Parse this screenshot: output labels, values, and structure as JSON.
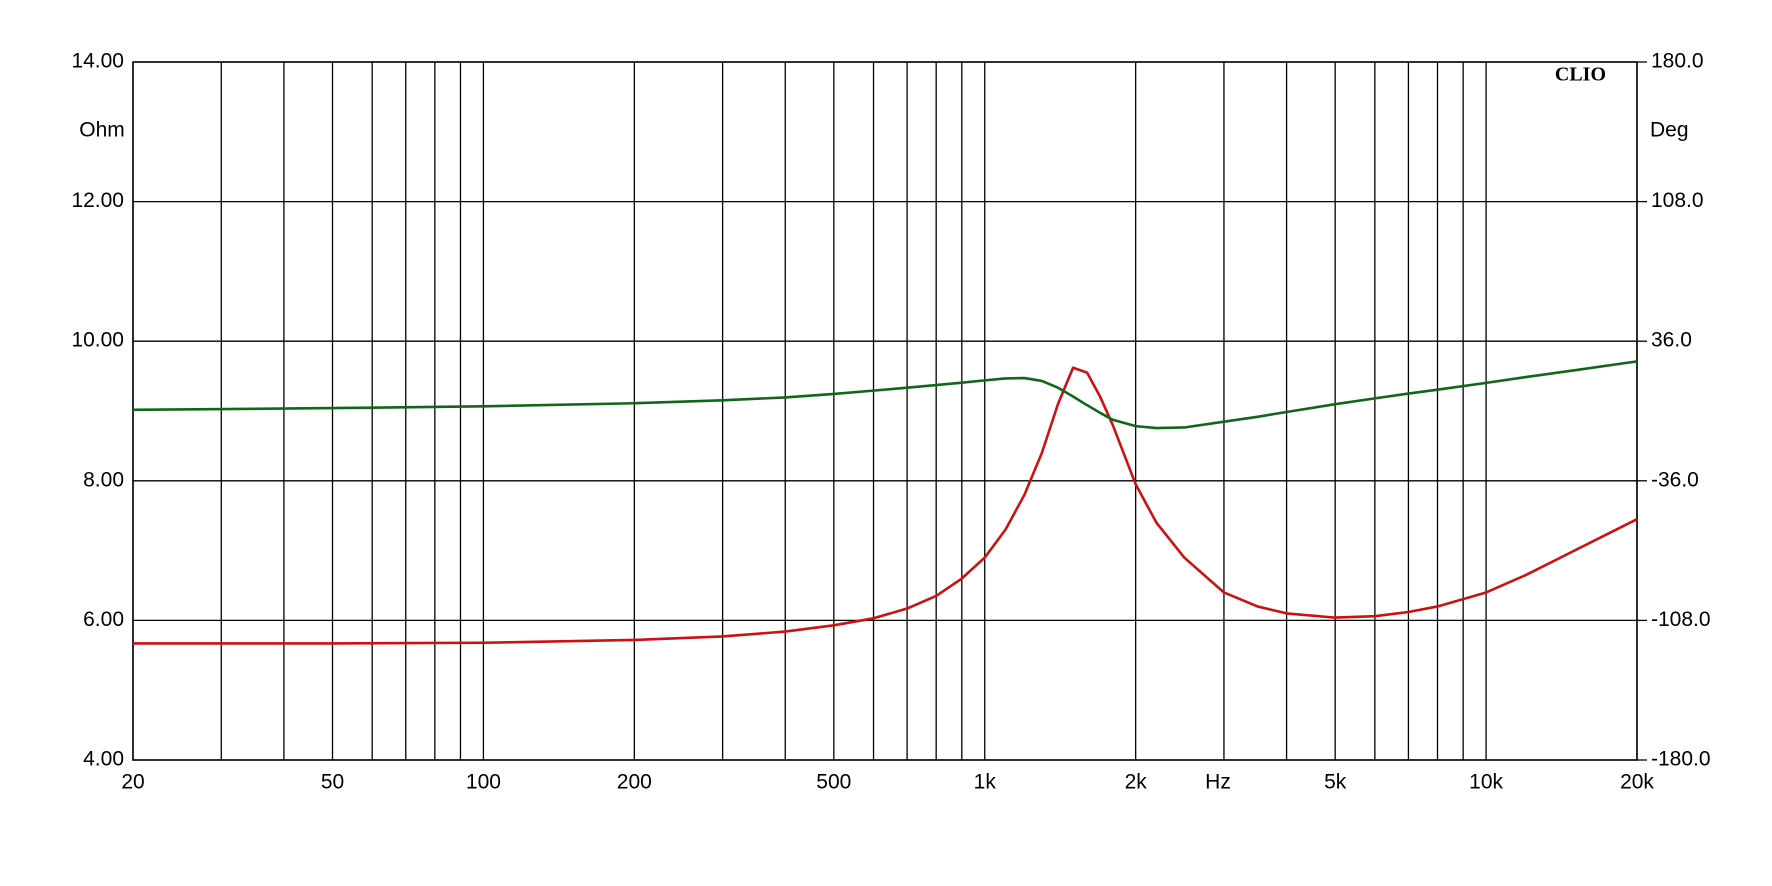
{
  "chart_data": {
    "type": "line",
    "watermark": "CLIO",
    "ylabel": "Ohm",
    "y2label": "Deg",
    "xlabel": "Hz",
    "xscale": "log",
    "grid": true,
    "xlim": [
      20,
      20000
    ],
    "xticks": [
      20,
      50,
      100,
      200,
      500,
      {
        "value": 1000,
        "label": "1k"
      },
      {
        "value": 2000,
        "label": "2k"
      },
      {
        "value": 5000,
        "label": "5k"
      },
      {
        "value": 10000,
        "label": "10k"
      },
      {
        "value": 20000,
        "label": "20k"
      }
    ],
    "xminor": [
      30,
      40,
      60,
      70,
      80,
      90,
      300,
      400,
      600,
      700,
      800,
      900,
      3000,
      4000,
      6000,
      7000,
      8000,
      9000
    ],
    "ylim": [
      4,
      14
    ],
    "yticks": [
      {
        "value": 4,
        "label": "4.00"
      },
      {
        "value": 6,
        "label": "6.00"
      },
      {
        "value": 8,
        "label": "8.00"
      },
      {
        "value": 10,
        "label": "10.00"
      },
      {
        "value": 12,
        "label": "12.00"
      },
      {
        "value": 14,
        "label": "14.00"
      }
    ],
    "y2lim": [
      -180,
      180
    ],
    "y2ticks": [
      {
        "value": -180,
        "label": "-180.0"
      },
      {
        "value": -108,
        "label": "-108.0"
      },
      {
        "value": -36,
        "label": "-36.0"
      },
      {
        "value": 36,
        "label": "36.0"
      },
      {
        "value": 108,
        "label": "108.0"
      },
      {
        "value": 180,
        "label": "180.0"
      }
    ],
    "x": [
      20,
      50,
      100,
      200,
      300,
      400,
      500,
      600,
      700,
      800,
      900,
      1000,
      1100,
      1200,
      1300,
      1400,
      1500,
      1600,
      1700,
      1800,
      2000,
      2200,
      2500,
      3000,
      3500,
      4000,
      5000,
      6000,
      7000,
      8000,
      10000,
      12000,
      15000,
      20000
    ],
    "series": [
      {
        "color": "#cc1111",
        "axis": "y",
        "values": [
          5.67,
          5.67,
          5.68,
          5.72,
          5.77,
          5.84,
          5.93,
          6.03,
          6.17,
          6.35,
          6.6,
          6.9,
          7.3,
          7.8,
          8.4,
          9.1,
          9.62,
          9.55,
          9.2,
          8.8,
          7.95,
          7.4,
          6.9,
          6.4,
          6.2,
          6.1,
          6.04,
          6.06,
          6.12,
          6.2,
          6.4,
          6.65,
          7.0,
          7.45
        ]
      },
      {
        "color": "#11661a",
        "axis": "y2",
        "values": [
          0.6,
          1.5,
          2.4,
          4,
          5.5,
          7,
          8.8,
          10.5,
          12,
          13.4,
          14.6,
          15.8,
          16.8,
          17,
          15.5,
          12,
          7.5,
          3,
          -1,
          -4.5,
          -7.8,
          -8.8,
          -8.5,
          -5.5,
          -3,
          -0.5,
          3.5,
          6.5,
          9,
          11,
          14.5,
          17.5,
          21,
          25.6
        ]
      }
    ]
  }
}
